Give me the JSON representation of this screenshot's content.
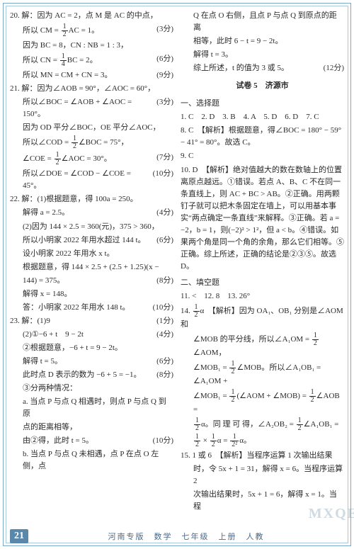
{
  "left": {
    "q20": {
      "l1": "20. 解：因为 AC = 2，点 M 是 AC 的中点，",
      "l2_txt": "所以 CM = ",
      "l2_frac_n": "1",
      "l2_frac_d": "2",
      "l2_tail": "AC = 1。",
      "l2_pts": "(3分)",
      "l3": "因为 BC = 8，CN : NB = 1 : 3，",
      "l4_txt": "所以 CN = ",
      "l4_frac_n": "1",
      "l4_frac_d": "4",
      "l4_tail": "BC = 2。",
      "l4_pts": "(6分)",
      "l5_txt": "所以 MN = CM + CN = 3。",
      "l5_pts": "(9分)"
    },
    "q21": {
      "l1": "21. 解：因为∠AOB = 90°，∠AOC = 60°，",
      "l2_txt": "所以∠BOC = ∠AOB + ∠AOC = 150°。",
      "l2_pts": "(3分)",
      "l3": "因为 OD 平分∠BOC，OE 平分∠AOC，",
      "l4_txt": "所以∠COD = ",
      "l4_frac_n": "1",
      "l4_frac_d": "2",
      "l4_tail": "∠BOC = 75°，",
      "l5_txt": "∠COE = ",
      "l5_frac_n": "1",
      "l5_frac_d": "2",
      "l5_tail": "∠AOC = 30°。",
      "l5_pts": "(7分)",
      "l6_txt": "所以∠DOE = ∠COD − ∠COE = 45°。",
      "l6_pts": "(10分)"
    },
    "q22": {
      "l1": "22. 解：(1)根据题意，得 100a = 250。",
      "l2_txt": "解得 a = 2.5。",
      "l2_pts": "(4分)",
      "l3": "(2)因为 144 × 2.5 = 360(元)，375 > 360，",
      "l4_txt": "所以小明家 2022 年用水超过 144 t。",
      "l4_pts": "(6分)",
      "l5": "设小明家 2022 年用水 x t。",
      "l6": "根据题意，得 144 × 2.5 + (2.5 + 1.25)(x −",
      "l7_txt": "144) = 375。",
      "l7_pts": "(8分)",
      "l8": "解得 x = 148。",
      "l9_txt": "答：小明家 2022 年用水 148 t。",
      "l9_pts": "(10分)"
    },
    "q23": {
      "l1_txt": "23. 解：(1)9",
      "l1_pts": "(1分)",
      "l2_txt": "(2)①−6 + t　9 − 2t",
      "l2_pts": "(4分)",
      "l3": "②根据题意，−6 + t = 9 − 2t。",
      "l4_txt": "解得 t = 5。",
      "l4_pts": "(6分)",
      "l5_txt": "此时点 D 表示的数为 −6 + 5 = −1。",
      "l5_pts": "(8分)",
      "l6": "③分两种情况：",
      "l7": "a. 当点 P 与点 Q 相遇时，则点 P 与点 Q 到原",
      "l8": "点的距离相等，",
      "l9_txt": "由②得，此时 t = 5。",
      "l9_pts": "(10分)",
      "l10": "b. 当点 P 与点 Q 未相遇，点 P 在点 O 左侧，点"
    }
  },
  "right": {
    "cont": {
      "l1": "Q 在点 O 右侧，且点 P 与点 Q 到原点的距离",
      "l2": "相等，此时 6 − t = 9 − 2t。",
      "l3": "解得 t = 3。",
      "l4_txt": "综上所述，t 的值为 3 或 5。",
      "l4_pts": "(12分)"
    },
    "title": "试卷 5　济源市",
    "sec1": "一、选择题",
    "mc": "1. C　2. D　3. B　4. A　5. D　6. D　7. C",
    "q8": "8. C　【解析】根据题意，得∠BOC = 180° − 59° − 41° = 80°。故选 C。",
    "q9": "9. C",
    "q10a": "10. D　【解析】绝对值越大的数在数轴上的位置离原点越远。①错误。若点 A、B、C 不在同一条直线上，则 AC + BC > AB。②正确。用两颗钉子就可以把木条固定在墙上，可以用基本事实“两点确定一条直线”来解释。③正确。若 a = −2，b = 1，则(−2)² > 1²，但 a < b。④错误。如果两个角是同一个角的余角，那么它们相等。⑤正确。综上所述，正确的结论是②③⑤。故选 D。",
    "sec2": "二、填空题",
    "fill": "11. <　12. 8　13. 26°",
    "q14_head": "14. ",
    "q14_frac_n": "1",
    "q14_frac_d": "2",
    "q14_a": "α　【解析】因为 OA₁、OB₁ 分别是∠AOM 和",
    "q14_b": "∠MOB 的平分线，所以∠A₁OM = ",
    "q14_b2": "∠AOM，",
    "q14_c": "∠MOB₁ = ",
    "q14_c2": "∠MOB。所以∠A₁OB₁ = ∠A₁OM +",
    "q14_d": "∠MOB₁ = ",
    "q14_d2": "(∠AOM + ∠MOB) = ",
    "q14_d3": "∠AOB =",
    "q14_e": "α。同 理 可 得，∠A₂OB₂ = ",
    "q14_e2": "∠A₁OB₁ =",
    "q14_f": " × ",
    "q14_f2": "α = ",
    "q14_f3": "α。",
    "q15a": "15. 1 或 6　【解析】当程序运算 1 次输出结果",
    "q15b": "时，令 5x + 1 = 31，解得 x = 6。当程序运算 2",
    "q15c": "次输出结果时，5x + 1 = 6，解得 x = 1。当程"
  },
  "footer": {
    "page": "21",
    "text": "河南专版　数学　七年级　上册　人教"
  },
  "watermark": "MXQE"
}
